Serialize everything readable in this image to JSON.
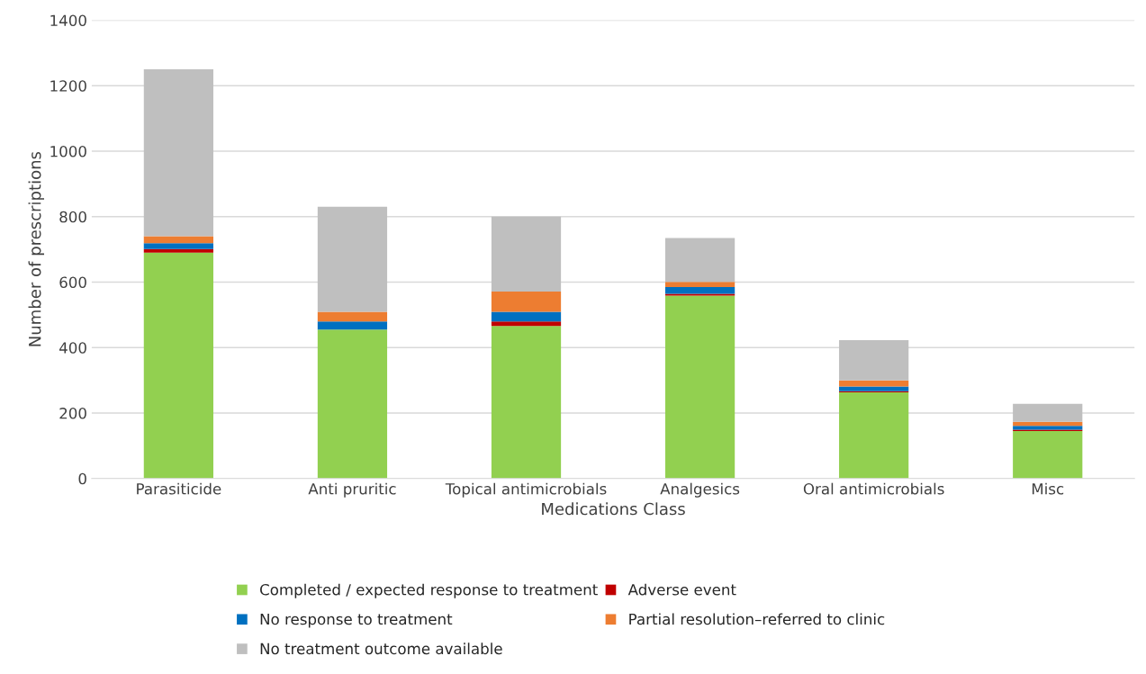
{
  "chart_data": {
    "type": "bar",
    "stacked": true,
    "xlabel": "Medications Class",
    "ylabel": "Number of prescriptions",
    "categories": [
      "Parasiticide",
      "Anti pruritic",
      "Topical antimicrobials",
      "Analgesics",
      "Oral antimicrobials",
      "Misc"
    ],
    "series": [
      {
        "name": "Completed / expected response to treatment",
        "color": "#92d050",
        "values": [
          690,
          455,
          466,
          559,
          263,
          145
        ]
      },
      {
        "name": "Adverse event",
        "color": "#c00000",
        "values": [
          11,
          0,
          14,
          5,
          4,
          4
        ]
      },
      {
        "name": "No response to treatment",
        "color": "#0070c0",
        "values": [
          18,
          25,
          29,
          21,
          14,
          12
        ]
      },
      {
        "name": "Partial resolution–referred to clinic",
        "color": "#ed7d31",
        "values": [
          21,
          29,
          62,
          16,
          19,
          12
        ]
      },
      {
        "name": "No treatment outcome available",
        "color": "#bfbfbf",
        "values": [
          510,
          321,
          229,
          134,
          123,
          55
        ]
      }
    ],
    "ylim": [
      0,
      1400
    ],
    "yticks": [
      0,
      200,
      400,
      600,
      800,
      1000,
      1200,
      1400
    ],
    "grid": "y",
    "legend": "bottom"
  }
}
